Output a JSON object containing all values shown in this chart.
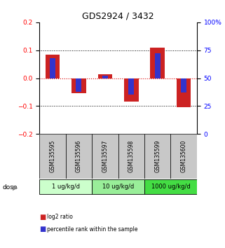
{
  "title": "GDS2924 / 3432",
  "samples": [
    "GSM135595",
    "GSM135596",
    "GSM135597",
    "GSM135598",
    "GSM135599",
    "GSM135600"
  ],
  "log2_ratio": [
    0.083,
    -0.055,
    0.015,
    -0.085,
    0.108,
    -0.105
  ],
  "percentile_rank_pct": [
    68,
    38,
    52,
    35,
    72,
    37
  ],
  "ylim_left": [
    -0.2,
    0.2
  ],
  "ylim_right": [
    0,
    100
  ],
  "yticks_left": [
    -0.2,
    -0.1,
    0.0,
    0.1,
    0.2
  ],
  "yticks_right": [
    0,
    25,
    50,
    75,
    100
  ],
  "dose_groups": [
    {
      "label": "1 ug/kg/d",
      "samples": [
        0,
        1
      ],
      "color": "#ccffcc"
    },
    {
      "label": "10 ug/kg/d",
      "samples": [
        2,
        3
      ],
      "color": "#99ee99"
    },
    {
      "label": "1000 ug/kg/d",
      "samples": [
        4,
        5
      ],
      "color": "#44dd44"
    }
  ],
  "red_color": "#cc2222",
  "blue_color": "#3333cc",
  "zero_line_color": "#dd0000",
  "background_color": "#ffffff",
  "label_bg_color": "#c8c8c8",
  "legend_red": "log2 ratio",
  "legend_blue": "percentile rank within the sample"
}
